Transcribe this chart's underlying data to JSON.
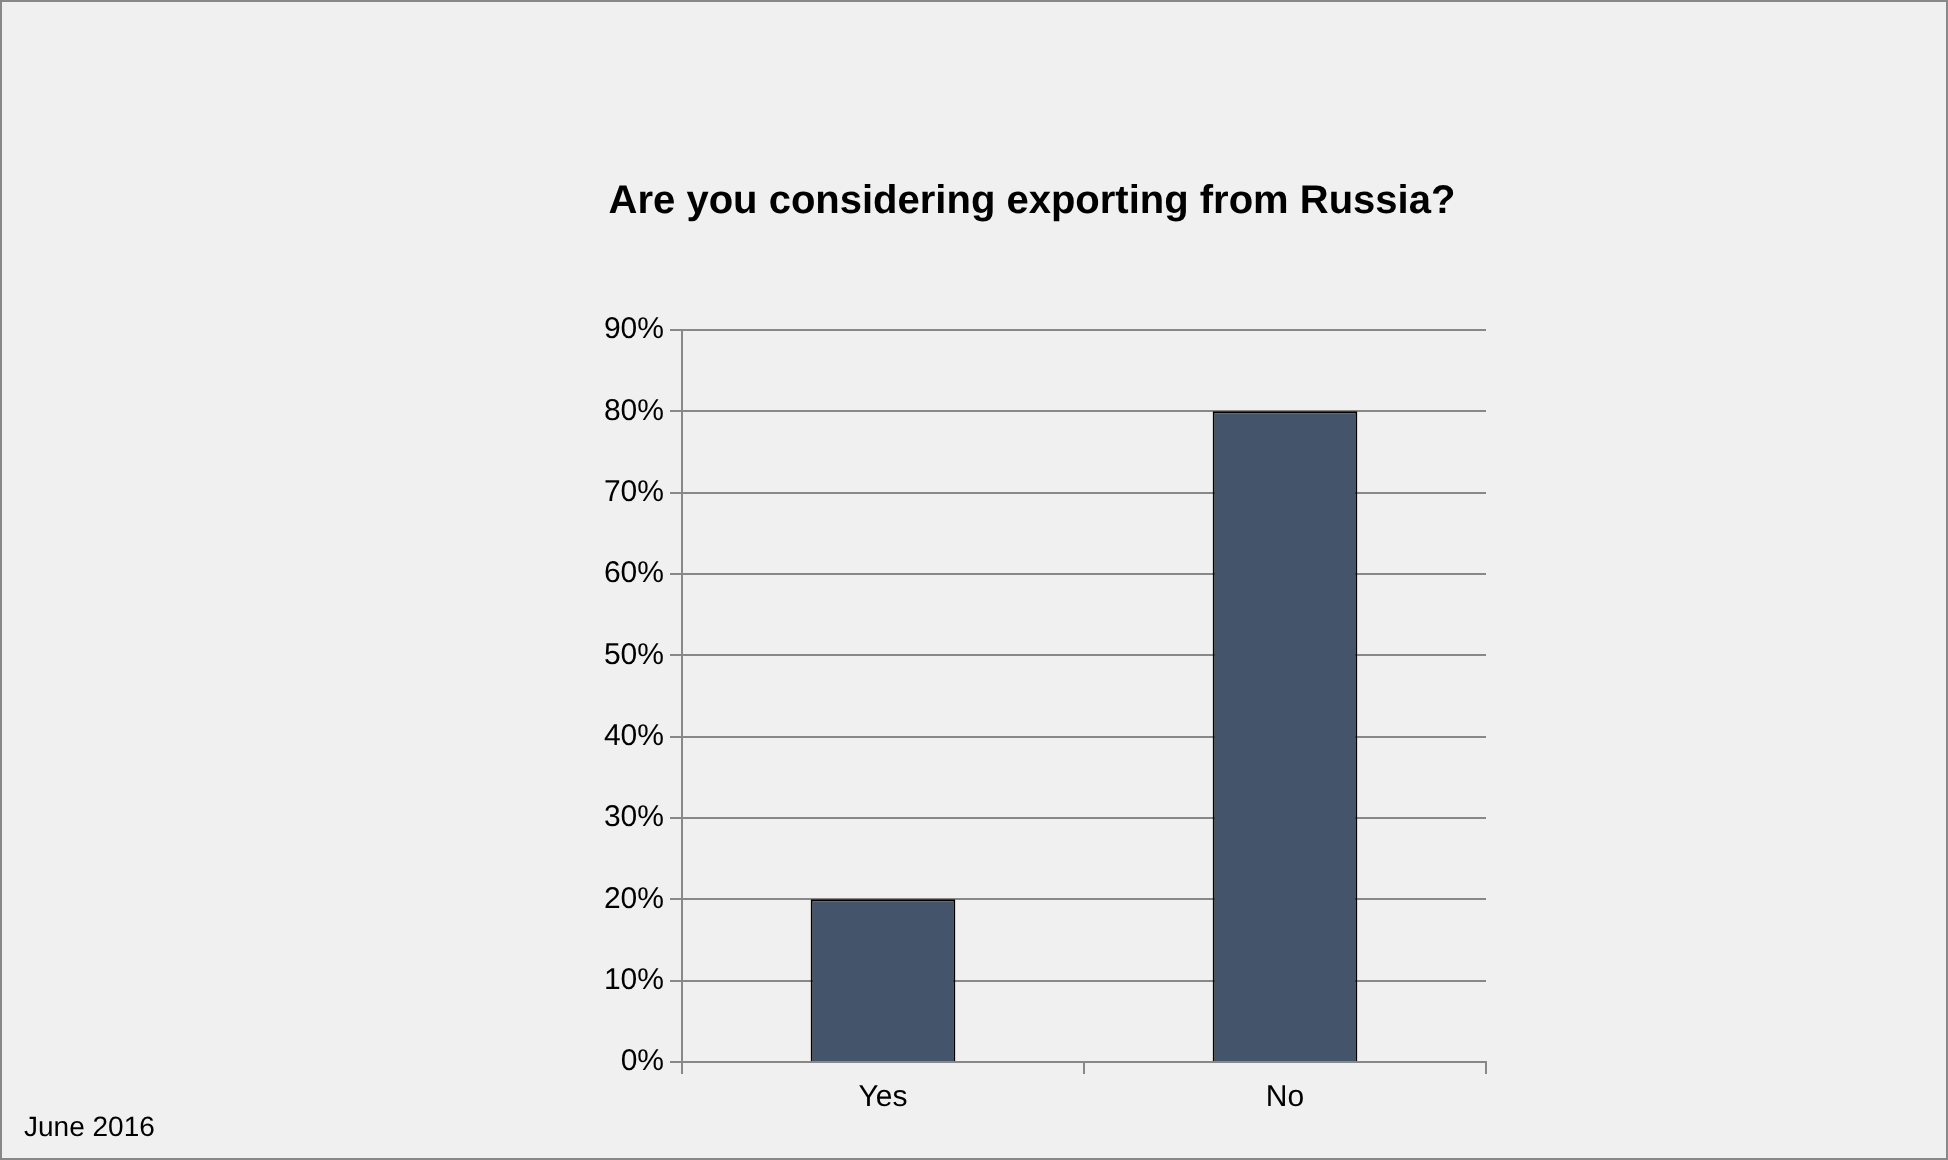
{
  "chart_data": {
    "type": "bar",
    "title": "Are you considering exporting from Russia?",
    "categories": [
      "Yes",
      "No"
    ],
    "values": [
      20,
      80
    ],
    "color": "#44546a",
    "ylim": [
      0,
      90
    ],
    "yticks": [
      {
        "value": 0,
        "label": "0%"
      },
      {
        "value": 10,
        "label": "10%"
      },
      {
        "value": 20,
        "label": "20%"
      },
      {
        "value": 30,
        "label": "30%"
      },
      {
        "value": 40,
        "label": "40%"
      },
      {
        "value": 50,
        "label": "50%"
      },
      {
        "value": 60,
        "label": "60%"
      },
      {
        "value": 70,
        "label": "70%"
      },
      {
        "value": 80,
        "label": "80%"
      },
      {
        "value": 90,
        "label": "90%"
      }
    ],
    "grid": "y",
    "legend": false,
    "annotations": [
      "June 2016"
    ]
  }
}
